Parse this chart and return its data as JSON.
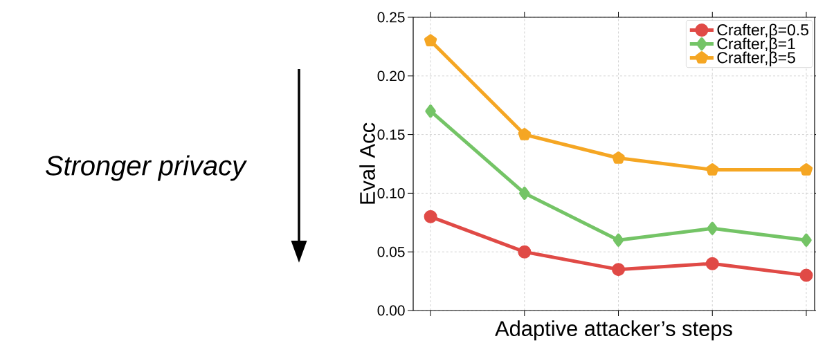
{
  "chart_data": {
    "type": "line",
    "xlabel": "Adaptive attacker’s steps",
    "ylabel": "Eval Acc",
    "categories": [
      null,
      null,
      null,
      null,
      null
    ],
    "series": [
      {
        "name": "Crafter,β=0.5",
        "color": "#e04a46",
        "marker": "circle",
        "values": [
          0.08,
          0.05,
          0.035,
          0.04,
          0.03
        ]
      },
      {
        "name": "Crafter,β=1",
        "color": "#74c466",
        "marker": "diamond",
        "values": [
          0.17,
          0.1,
          0.06,
          0.07,
          0.06
        ]
      },
      {
        "name": "Crafter,β=5",
        "color": "#f5a623",
        "marker": "star",
        "values": [
          0.23,
          0.15,
          0.13,
          0.12,
          0.12
        ]
      }
    ],
    "ylim": [
      0,
      0.25
    ],
    "yticks": [
      {
        "value": 0,
        "label": "0.00"
      },
      {
        "value": 0.05,
        "label": "0.05"
      },
      {
        "value": 0.1,
        "label": "0.10"
      },
      {
        "value": 0.15,
        "label": "0.15"
      },
      {
        "value": 0.2,
        "label": "0.20"
      },
      {
        "value": 0.25,
        "label": "0.25"
      }
    ],
    "grid": true,
    "legend": "top right",
    "line_style": "solid",
    "annotations": [
      "Stronger privacy"
    ]
  }
}
